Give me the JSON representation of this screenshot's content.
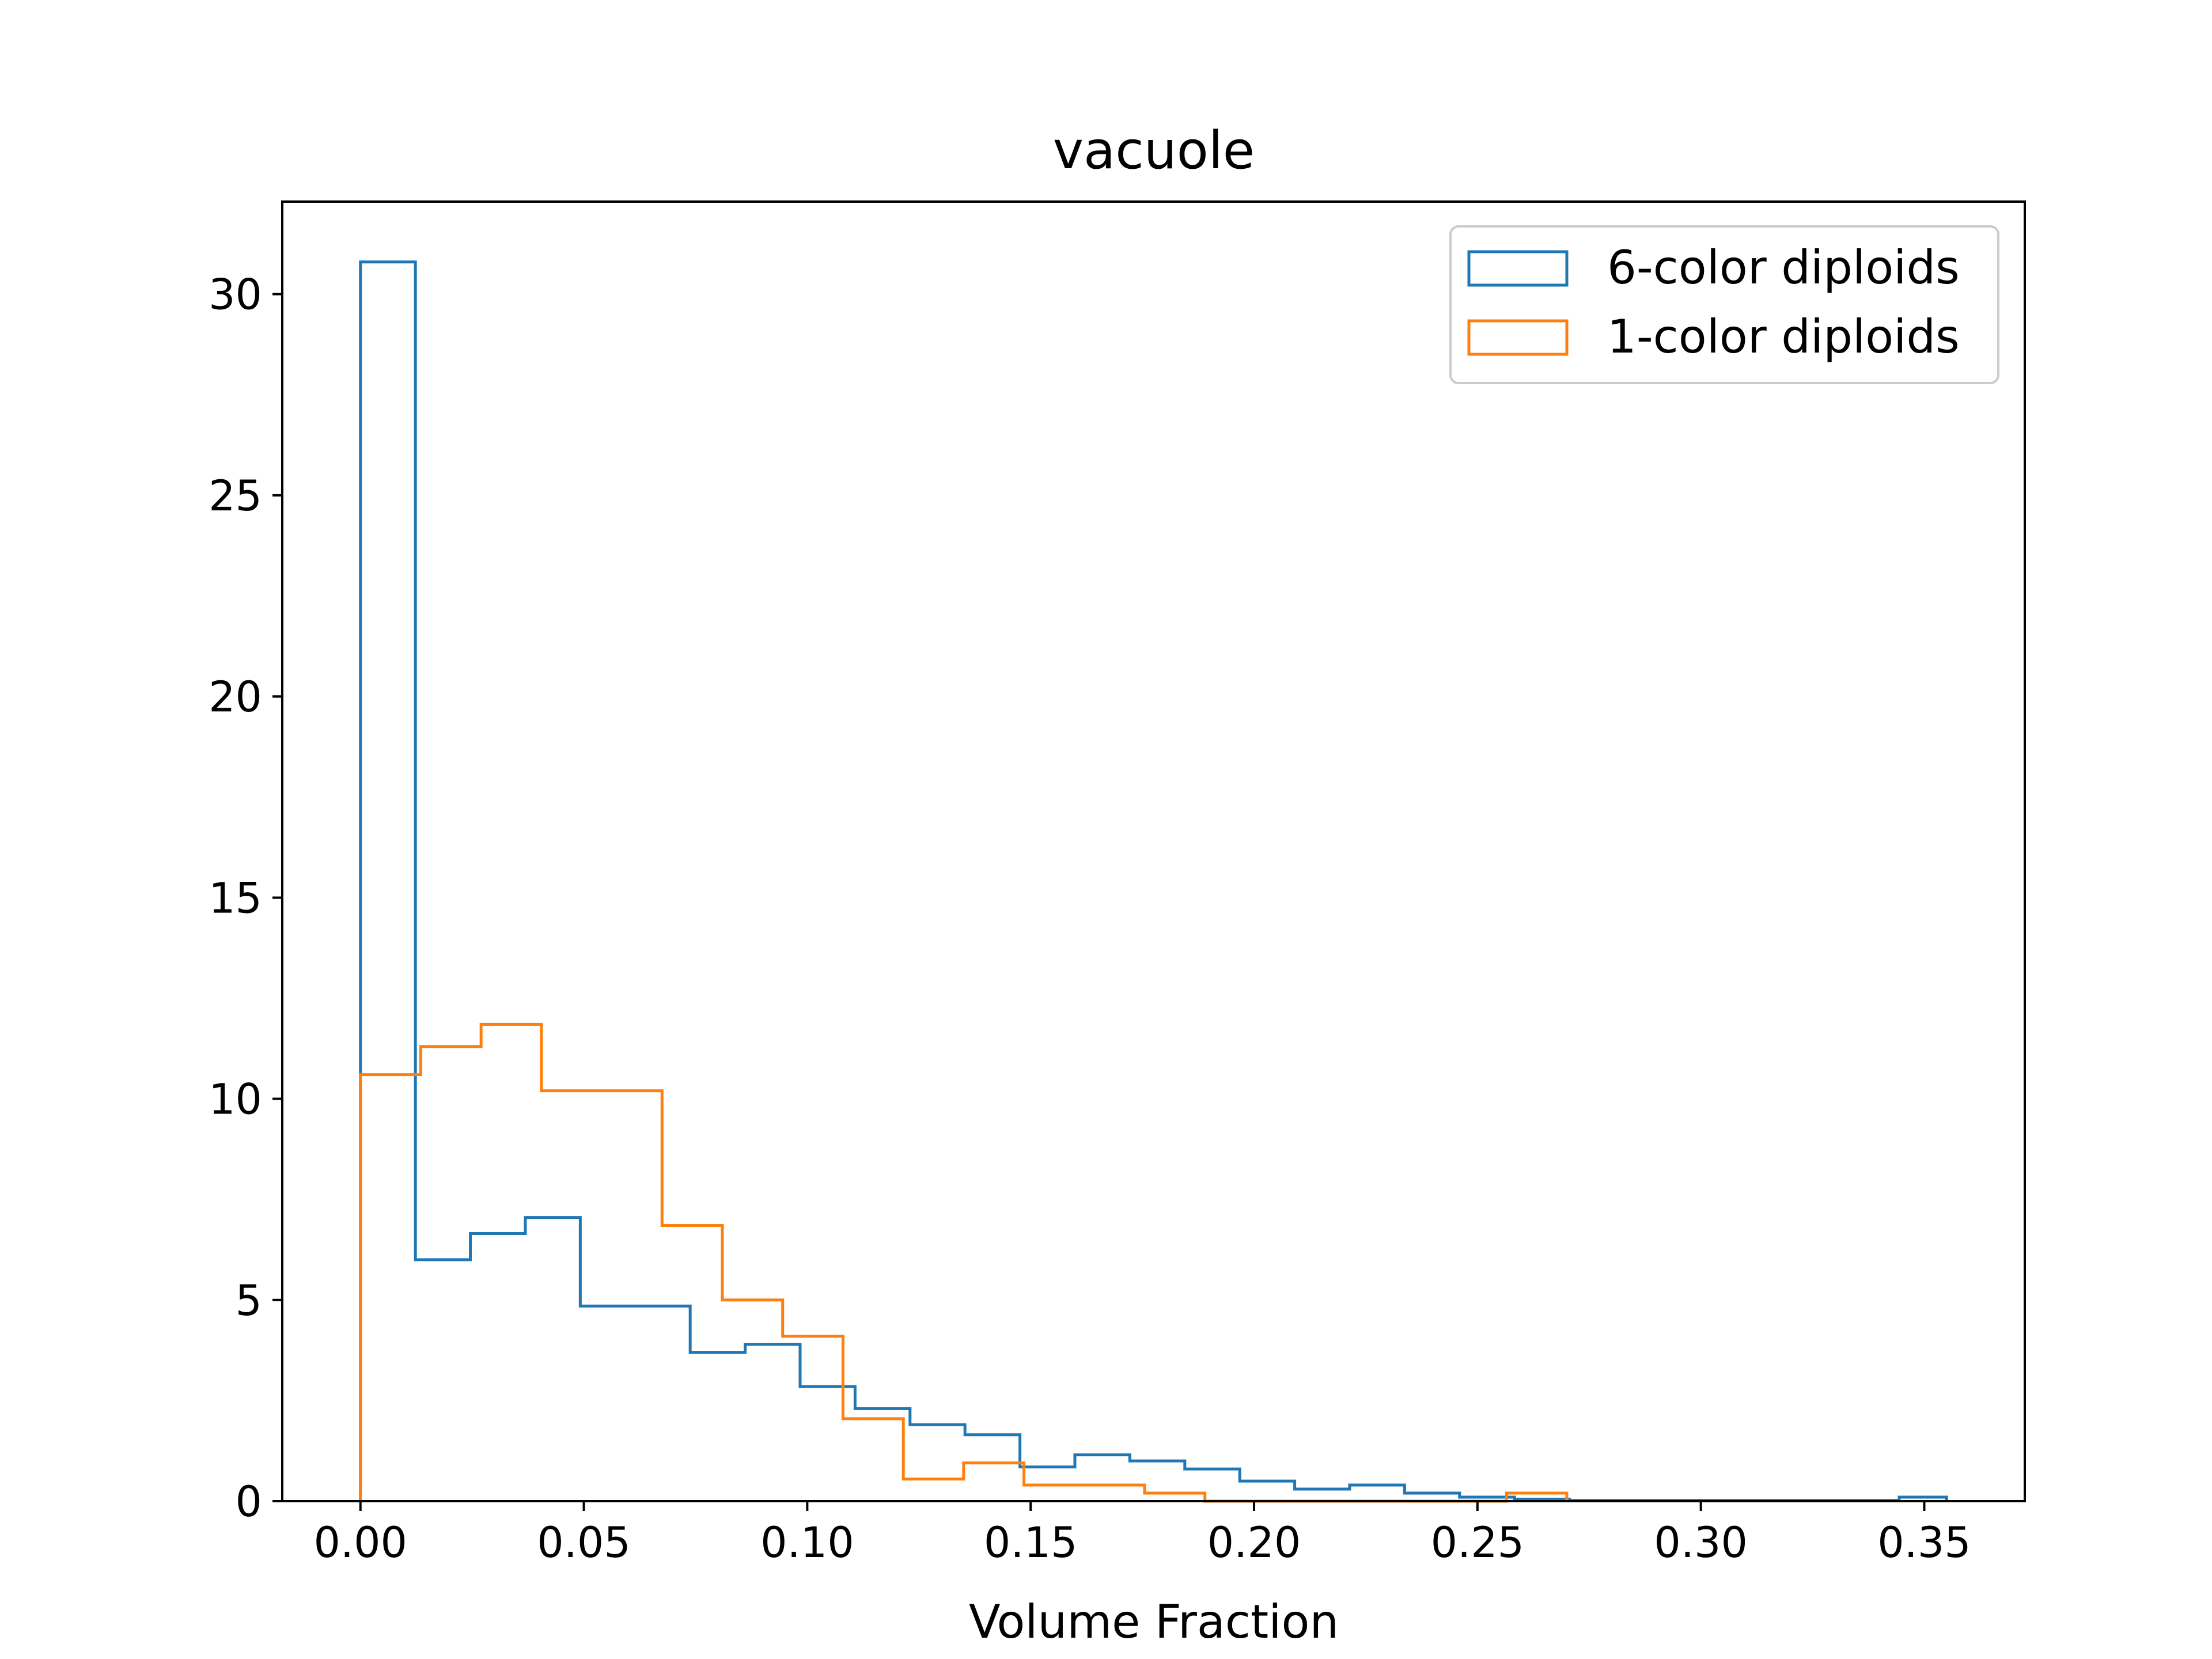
{
  "chart_data": {
    "type": "histogram-step",
    "title": "vacuole",
    "xlabel": "Volume Fraction",
    "ylabel": "",
    "xlim": [
      -0.0175,
      0.3725
    ],
    "ylim": [
      0,
      32.3
    ],
    "xticks": [
      0.0,
      0.05,
      0.1,
      0.15,
      0.2,
      0.25,
      0.3,
      0.35
    ],
    "xtick_labels": [
      "0.00",
      "0.05",
      "0.10",
      "0.15",
      "0.20",
      "0.25",
      "0.30",
      "0.35"
    ],
    "yticks": [
      0,
      5,
      10,
      15,
      20,
      25,
      30
    ],
    "ytick_labels": [
      "0",
      "5",
      "10",
      "15",
      "20",
      "25",
      "30"
    ],
    "grid": false,
    "legend_position": "top-right",
    "series": [
      {
        "name": "6-color diploids",
        "color": "#1f77b4",
        "bin_edges": [
          0.0,
          0.0123,
          0.0246,
          0.0369,
          0.0492,
          0.0615,
          0.0738,
          0.0861,
          0.0984,
          0.1107,
          0.123,
          0.1353,
          0.1476,
          0.1599,
          0.1722,
          0.1845,
          0.1968,
          0.2091,
          0.2214,
          0.2337,
          0.246,
          0.2583,
          0.2706,
          0.2829,
          0.2952,
          0.3075,
          0.3198,
          0.3321,
          0.3444,
          0.355
        ],
        "values": [
          30.8,
          6.0,
          6.65,
          7.05,
          4.85,
          4.85,
          3.7,
          3.9,
          2.85,
          2.3,
          1.9,
          1.65,
          0.85,
          1.15,
          1.0,
          0.8,
          0.5,
          0.3,
          0.4,
          0.2,
          0.1,
          0.05,
          0.02,
          0.02,
          0.02,
          0.02,
          0.02,
          0.02,
          0.1
        ]
      },
      {
        "name": "1-color diploids",
        "color": "#ff7f0e",
        "bin_edges": [
          0.0,
          0.0135,
          0.027,
          0.0405,
          0.054,
          0.0675,
          0.081,
          0.0945,
          0.108,
          0.1215,
          0.135,
          0.1485,
          0.162,
          0.1755,
          0.189,
          0.2025,
          0.216,
          0.2295,
          0.243,
          0.2565,
          0.27
        ],
        "values": [
          10.6,
          11.3,
          11.85,
          10.2,
          10.2,
          6.85,
          5.0,
          4.1,
          2.05,
          0.55,
          0.95,
          0.4,
          0.4,
          0.2,
          0.0,
          0.0,
          0.0,
          0.0,
          0.0,
          0.2
        ]
      }
    ]
  }
}
